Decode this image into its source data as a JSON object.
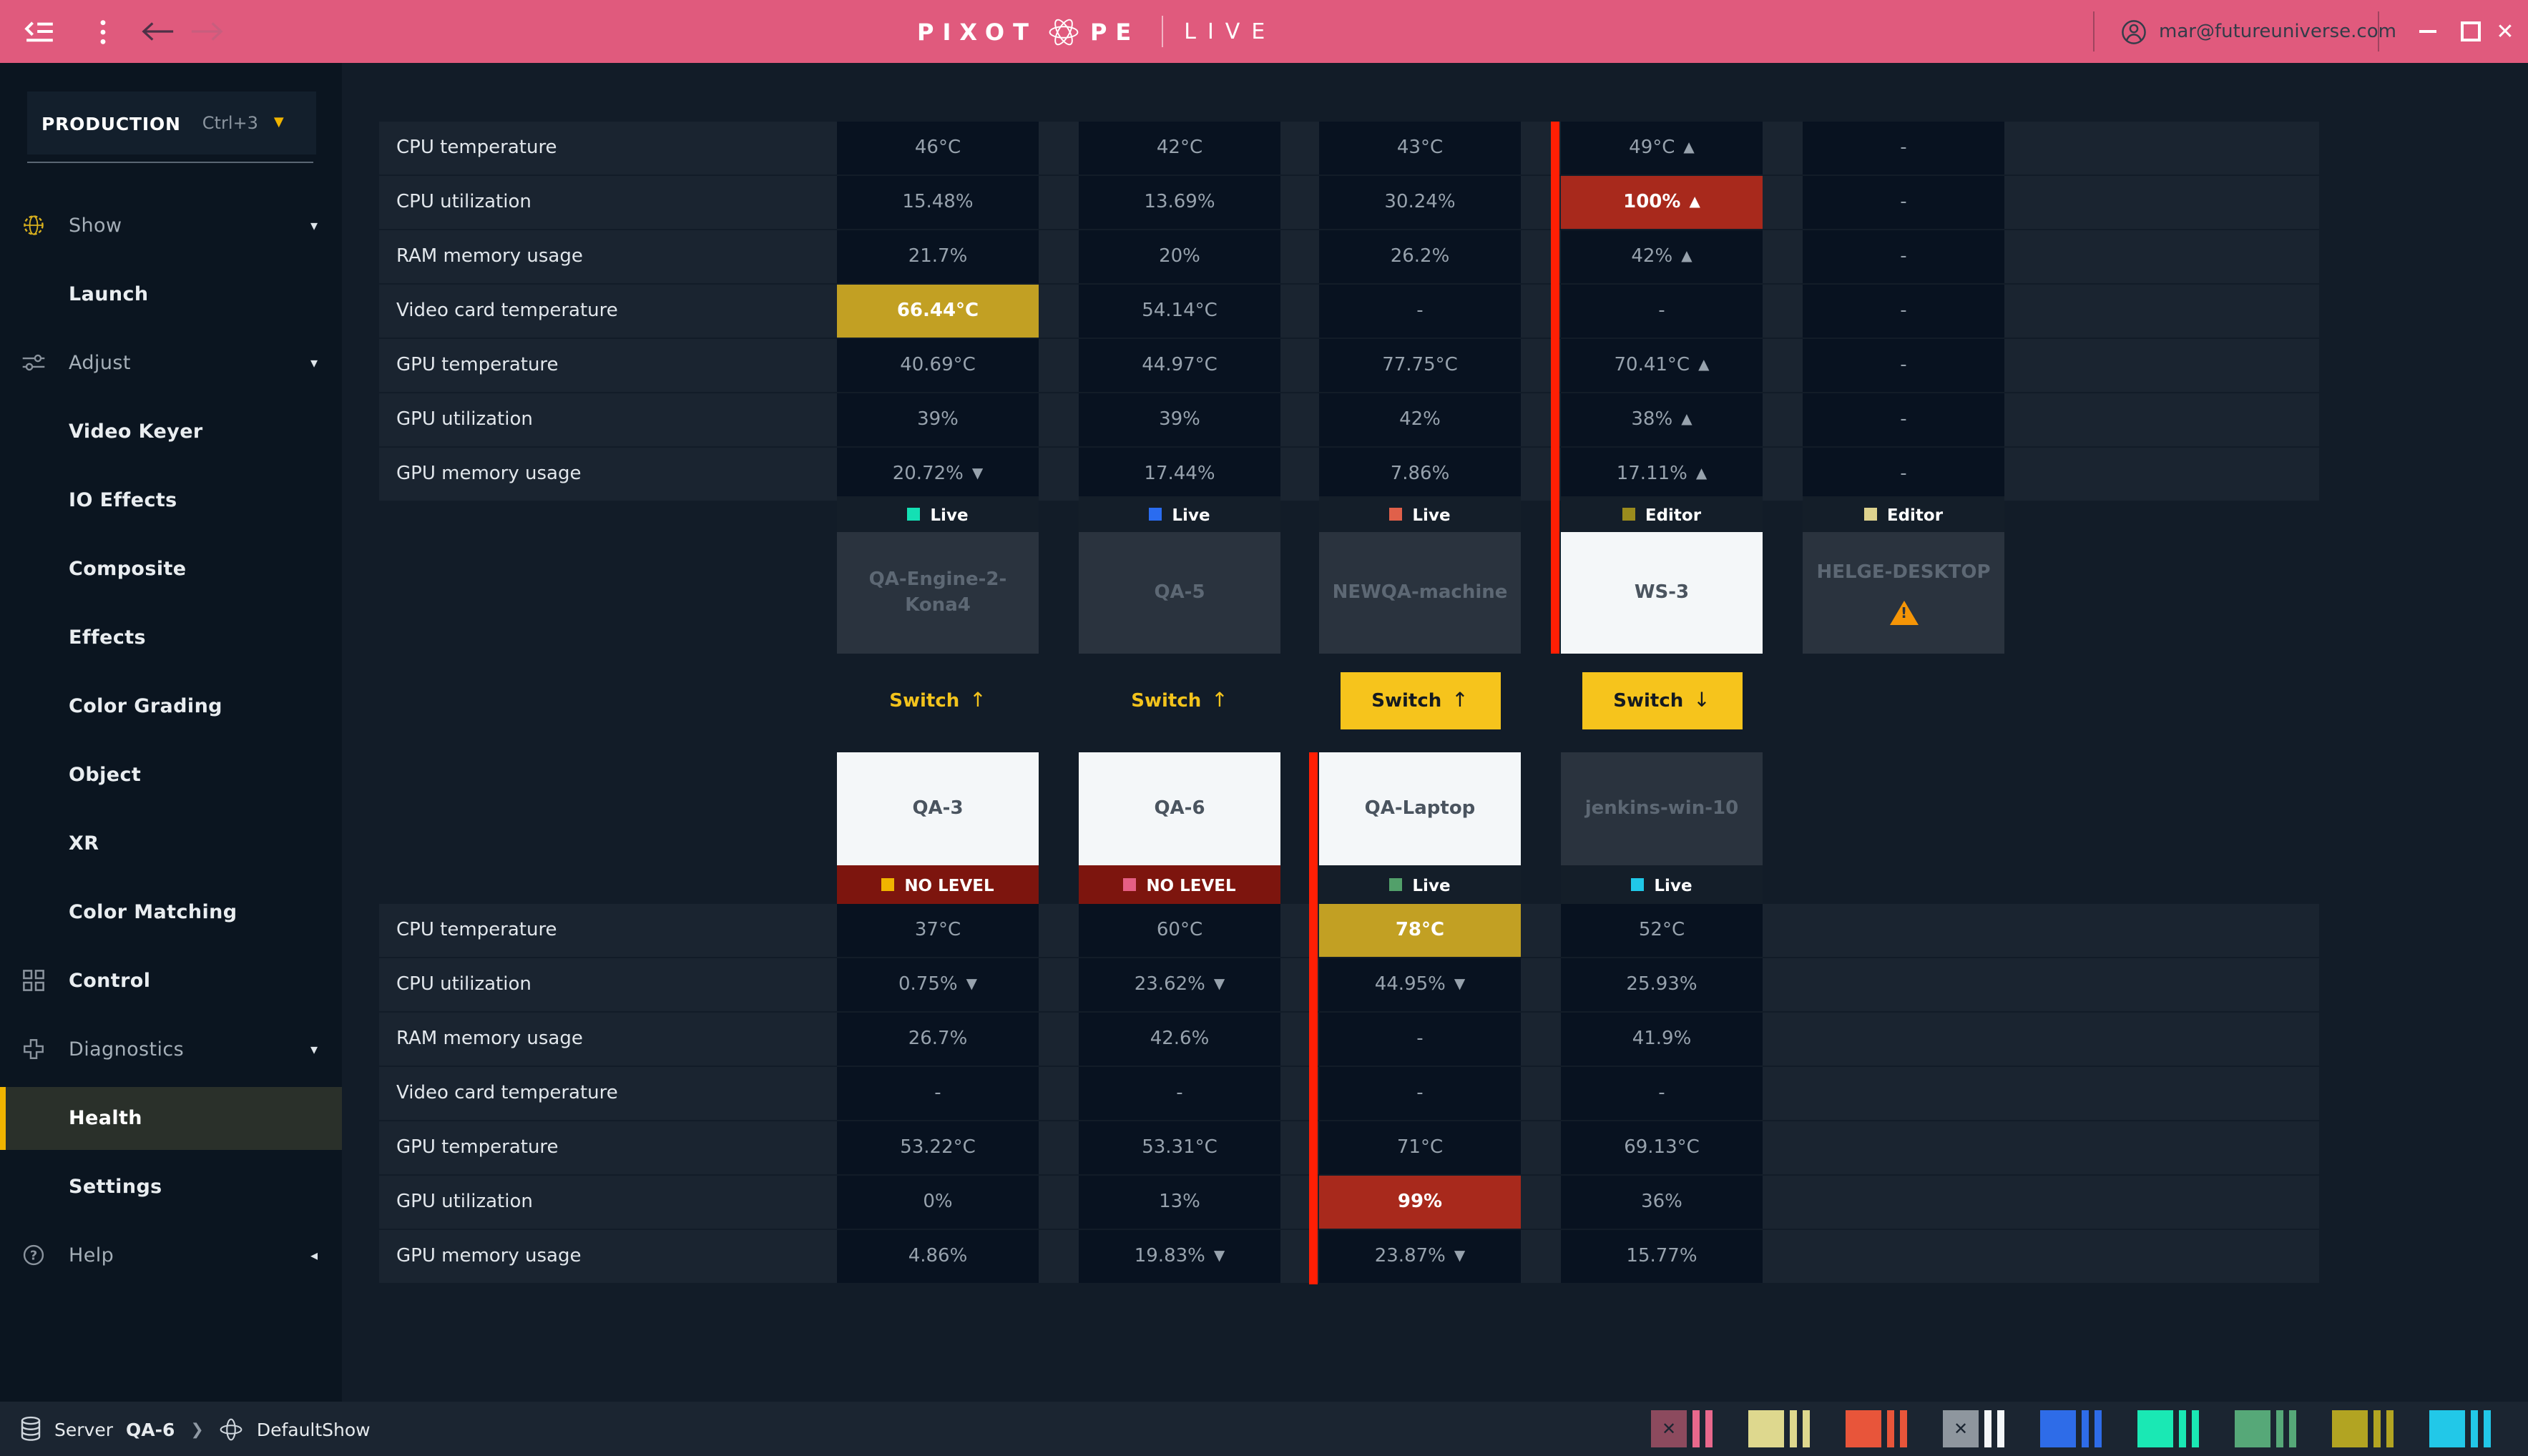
{
  "titlebar": {
    "logo": {
      "word_start": "PIXOT",
      "word_end": "PE",
      "suffix": "LIVE"
    },
    "user_email": "mar@futureuniverse.com"
  },
  "sidebar": {
    "production": {
      "label": "PRODUCTION",
      "shortcut": "Ctrl+3"
    },
    "items": [
      {
        "label": "Show",
        "level": 0,
        "icon": "globe-icon",
        "icon_color": "#d8b01e",
        "chevron": "down"
      },
      {
        "label": "Launch",
        "level": 1
      },
      {
        "label": "Adjust",
        "level": 0,
        "icon": "sliders-icon",
        "chevron": "down"
      },
      {
        "label": "Video Keyer",
        "level": 1
      },
      {
        "label": "IO Effects",
        "level": 1
      },
      {
        "label": "Composite",
        "level": 1
      },
      {
        "label": "Effects",
        "level": 1
      },
      {
        "label": "Color Grading",
        "level": 1
      },
      {
        "label": "Object",
        "level": 1
      },
      {
        "label": "XR",
        "level": 1
      },
      {
        "label": "Color Matching",
        "level": 1
      },
      {
        "label": "Control",
        "level": 0,
        "icon": "grid-icon",
        "bright": true
      },
      {
        "label": "Diagnostics",
        "level": 0,
        "icon": "plus-icon",
        "chevron": "down"
      },
      {
        "label": "Health",
        "level": 1,
        "active": true
      },
      {
        "label": "Settings",
        "level": 1
      },
      {
        "label": "Help",
        "level": 0,
        "icon": "question-icon",
        "chevron": "left"
      }
    ]
  },
  "metrics": {
    "labels": [
      "CPU temperature",
      "CPU utilization",
      "RAM memory usage",
      "Video card temperature",
      "GPU temperature",
      "GPU utilization",
      "GPU memory usage"
    ]
  },
  "top_section": {
    "machines": [
      {
        "name": "QA-Engine-2-Kona4",
        "status": "Live",
        "status_color": "#14e0b4",
        "card": "muted",
        "values": [
          {
            "text": "46°C"
          },
          {
            "text": "15.48%"
          },
          {
            "text": "21.7%"
          },
          {
            "text": "66.44°C",
            "highlight": "gold"
          },
          {
            "text": "40.69°C"
          },
          {
            "text": "39%"
          },
          {
            "text": "20.72%",
            "arrow": "down"
          }
        ]
      },
      {
        "name": "QA-5",
        "status": "Live",
        "status_color": "#2a6cf0",
        "card": "muted",
        "values": [
          {
            "text": "42°C"
          },
          {
            "text": "13.69%"
          },
          {
            "text": "20%"
          },
          {
            "text": "54.14°C"
          },
          {
            "text": "44.97°C"
          },
          {
            "text": "39%"
          },
          {
            "text": "17.44%"
          }
        ]
      },
      {
        "name": "NEWQA-machine",
        "status": "Live",
        "status_color": "#e0604a",
        "card": "muted",
        "values": [
          {
            "text": "43°C"
          },
          {
            "text": "30.24%"
          },
          {
            "text": "26.2%"
          },
          {
            "text": "-"
          },
          {
            "text": "77.75°C"
          },
          {
            "text": "42%"
          },
          {
            "text": "7.86%"
          }
        ]
      },
      {
        "name": "WS-3",
        "status": "Editor",
        "status_color": "#9a8b1d",
        "card": "white",
        "red_line": true,
        "values": [
          {
            "text": "49°C",
            "arrow": "up"
          },
          {
            "text": "100%",
            "arrow": "up",
            "highlight": "red"
          },
          {
            "text": "42%",
            "arrow": "up"
          },
          {
            "text": "-"
          },
          {
            "text": "70.41°C",
            "arrow": "up"
          },
          {
            "text": "38%",
            "arrow": "up"
          },
          {
            "text": "17.11%",
            "arrow": "up"
          }
        ]
      },
      {
        "name": "HELGE-DESKTOP",
        "status": "Editor",
        "status_color": "#ddd28e",
        "card": "muted",
        "warning": true,
        "values": [
          {
            "text": "-"
          },
          {
            "text": "-"
          },
          {
            "text": "-"
          },
          {
            "text": "-"
          },
          {
            "text": "-"
          },
          {
            "text": "-"
          },
          {
            "text": "-"
          }
        ]
      }
    ]
  },
  "switch_row": {
    "buttons": [
      {
        "label": "Switch",
        "direction": "up",
        "filled": false
      },
      {
        "label": "Switch",
        "direction": "up",
        "filled": false
      },
      {
        "label": "Switch",
        "direction": "up",
        "filled": true
      },
      {
        "label": "Switch",
        "direction": "down",
        "filled": true
      }
    ]
  },
  "bottom_section": {
    "machines": [
      {
        "name": "QA-3",
        "status": "NO LEVEL",
        "status_color": "#f0b400",
        "card": "white",
        "strip": "nolevel",
        "values": [
          {
            "text": "37°C"
          },
          {
            "text": "0.75%",
            "arrow": "down"
          },
          {
            "text": "26.7%"
          },
          {
            "text": "-"
          },
          {
            "text": "53.22°C"
          },
          {
            "text": "0%"
          },
          {
            "text": "4.86%"
          }
        ]
      },
      {
        "name": "QA-6",
        "status": "NO LEVEL",
        "status_color": "#e55f84",
        "card": "white",
        "strip": "nolevel",
        "values": [
          {
            "text": "60°C"
          },
          {
            "text": "23.62%",
            "arrow": "down"
          },
          {
            "text": "42.6%"
          },
          {
            "text": "-"
          },
          {
            "text": "53.31°C"
          },
          {
            "text": "13%"
          },
          {
            "text": "19.83%",
            "arrow": "down"
          }
        ]
      },
      {
        "name": "QA-Laptop",
        "status": "Live",
        "status_color": "#52a06a",
        "card": "white",
        "red_line": true,
        "values": [
          {
            "text": "78°C",
            "highlight": "gold"
          },
          {
            "text": "44.95%",
            "arrow": "down"
          },
          {
            "text": "-"
          },
          {
            "text": "-"
          },
          {
            "text": "71°C"
          },
          {
            "text": "99%",
            "highlight": "red"
          },
          {
            "text": "23.87%",
            "arrow": "down"
          }
        ]
      },
      {
        "name": "jenkins-win-10",
        "status": "Live",
        "status_color": "#20c8e8",
        "card": "muted",
        "values": [
          {
            "text": "52°C"
          },
          {
            "text": "25.93%"
          },
          {
            "text": "41.9%"
          },
          {
            "text": "-"
          },
          {
            "text": "69.13°C"
          },
          {
            "text": "36%"
          },
          {
            "text": "15.77%"
          }
        ]
      }
    ]
  },
  "statusbar": {
    "breadcrumb": {
      "server_label": "Server",
      "server_name": "QA-6",
      "show_name": "DefaultShow"
    },
    "level_groups": [
      {
        "tile": "#8c4a5e",
        "mark": "x",
        "bar": "#e8688c"
      },
      {
        "tile": "#ded88e",
        "mark": "",
        "bar": "#ded88e"
      },
      {
        "tile": "#e8553a",
        "mark": "",
        "bar": "#e8553a"
      },
      {
        "tile": "#8e969e",
        "mark": "x",
        "bar": "#f4f7f9"
      },
      {
        "tile": "#2e6ce8",
        "mark": "",
        "bar": "#2e6ce8"
      },
      {
        "tile": "#1ae8b4",
        "mark": "",
        "bar": "#1ae8b4"
      },
      {
        "tile": "#56a878",
        "mark": "",
        "bar": "#56a878"
      },
      {
        "tile": "#b2a422",
        "mark": "",
        "bar": "#b2a422"
      },
      {
        "tile": "#22c8e8",
        "mark": "",
        "bar": "#22c8e8"
      }
    ]
  },
  "colors": {
    "accent_pink": "#e05a7d",
    "warning_gold": "#c2a023",
    "alert_red": "#a8291c",
    "switch_yellow": "#f6c41c",
    "alert_line_red": "#ff1f04"
  }
}
